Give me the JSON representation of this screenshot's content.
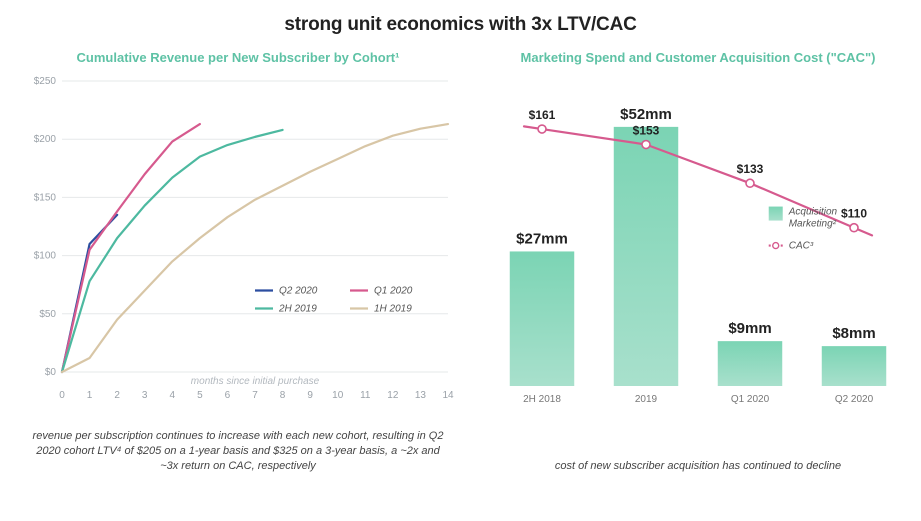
{
  "title": "strong unit economics with 3x LTV/CAC",
  "left": {
    "title": "Cumulative Revenue per New Subscriber by Cohort¹",
    "title_color": "#5ec2a5",
    "type": "line",
    "x_label": "months since initial purchase",
    "x_ticks": [
      0,
      1,
      2,
      3,
      4,
      5,
      6,
      7,
      8,
      9,
      10,
      11,
      12,
      13,
      14
    ],
    "y_ticks": [
      0,
      50,
      100,
      150,
      200,
      250
    ],
    "y_prefix": "$",
    "ylim": [
      0,
      250
    ],
    "xlim": [
      0,
      14
    ],
    "grid_color": "#e6e8ea",
    "axis_color": "#9aa1a8",
    "line_width": 2.2,
    "series": [
      {
        "label": "Q2 2020",
        "color": "#2c4ea0",
        "points": [
          [
            0,
            0
          ],
          [
            1,
            110
          ],
          [
            2,
            135
          ]
        ]
      },
      {
        "label": "Q1 2020",
        "color": "#d65a8e",
        "points": [
          [
            0,
            0
          ],
          [
            1,
            105
          ],
          [
            2,
            138
          ],
          [
            3,
            170
          ],
          [
            4,
            198
          ],
          [
            5,
            213
          ]
        ]
      },
      {
        "label": "2H 2019",
        "color": "#4db9a0",
        "points": [
          [
            0,
            0
          ],
          [
            1,
            78
          ],
          [
            2,
            115
          ],
          [
            3,
            143
          ],
          [
            4,
            167
          ],
          [
            5,
            185
          ],
          [
            6,
            195
          ],
          [
            7,
            202
          ],
          [
            8,
            208
          ]
        ]
      },
      {
        "label": "1H 2019",
        "color": "#d8c6a6",
        "points": [
          [
            0,
            0
          ],
          [
            1,
            12
          ],
          [
            2,
            45
          ],
          [
            3,
            70
          ],
          [
            4,
            95
          ],
          [
            5,
            115
          ],
          [
            6,
            133
          ],
          [
            7,
            148
          ],
          [
            8,
            160
          ],
          [
            9,
            172
          ],
          [
            10,
            183
          ],
          [
            11,
            194
          ],
          [
            12,
            203
          ],
          [
            13,
            209
          ],
          [
            14,
            213
          ]
        ]
      }
    ],
    "caption": "revenue per subscription continues to increase with each new cohort, resulting in Q2 2020 cohort LTV⁴ of $205 on a 1-year basis and $325 on a 3-year basis, a ~2x and ~3x return on CAC, respectively"
  },
  "right": {
    "title": "Marketing Spend and Customer Acquisition Cost (\"CAC\")",
    "title_color": "#5ec2a5",
    "type": "bar+line",
    "categories": [
      "2H 2018",
      "2019",
      "Q1 2020",
      "Q2 2020"
    ],
    "bars": {
      "values": [
        27,
        52,
        9,
        8
      ],
      "labels": [
        "$27mm",
        "$52mm",
        "$9mm",
        "$8mm"
      ],
      "color_top": "#7bd4b4",
      "color_bottom": "#a8e0cc",
      "ylim": [
        0,
        60
      ],
      "bar_width": 0.62,
      "legend_label": "Acquisition Marketing²"
    },
    "line": {
      "values": [
        161,
        153,
        133,
        110
      ],
      "labels": [
        "$161",
        "$153",
        "$133",
        "$110"
      ],
      "color": "#d65a8e",
      "width": 2.2,
      "marker_fill": "#ffffff",
      "marker_stroke": "#d65a8e",
      "marker_r": 4,
      "ylim": [
        90,
        175
      ],
      "legend_label": "CAC³"
    },
    "caption": "cost of new subscriber acquisition has continued to decline"
  }
}
